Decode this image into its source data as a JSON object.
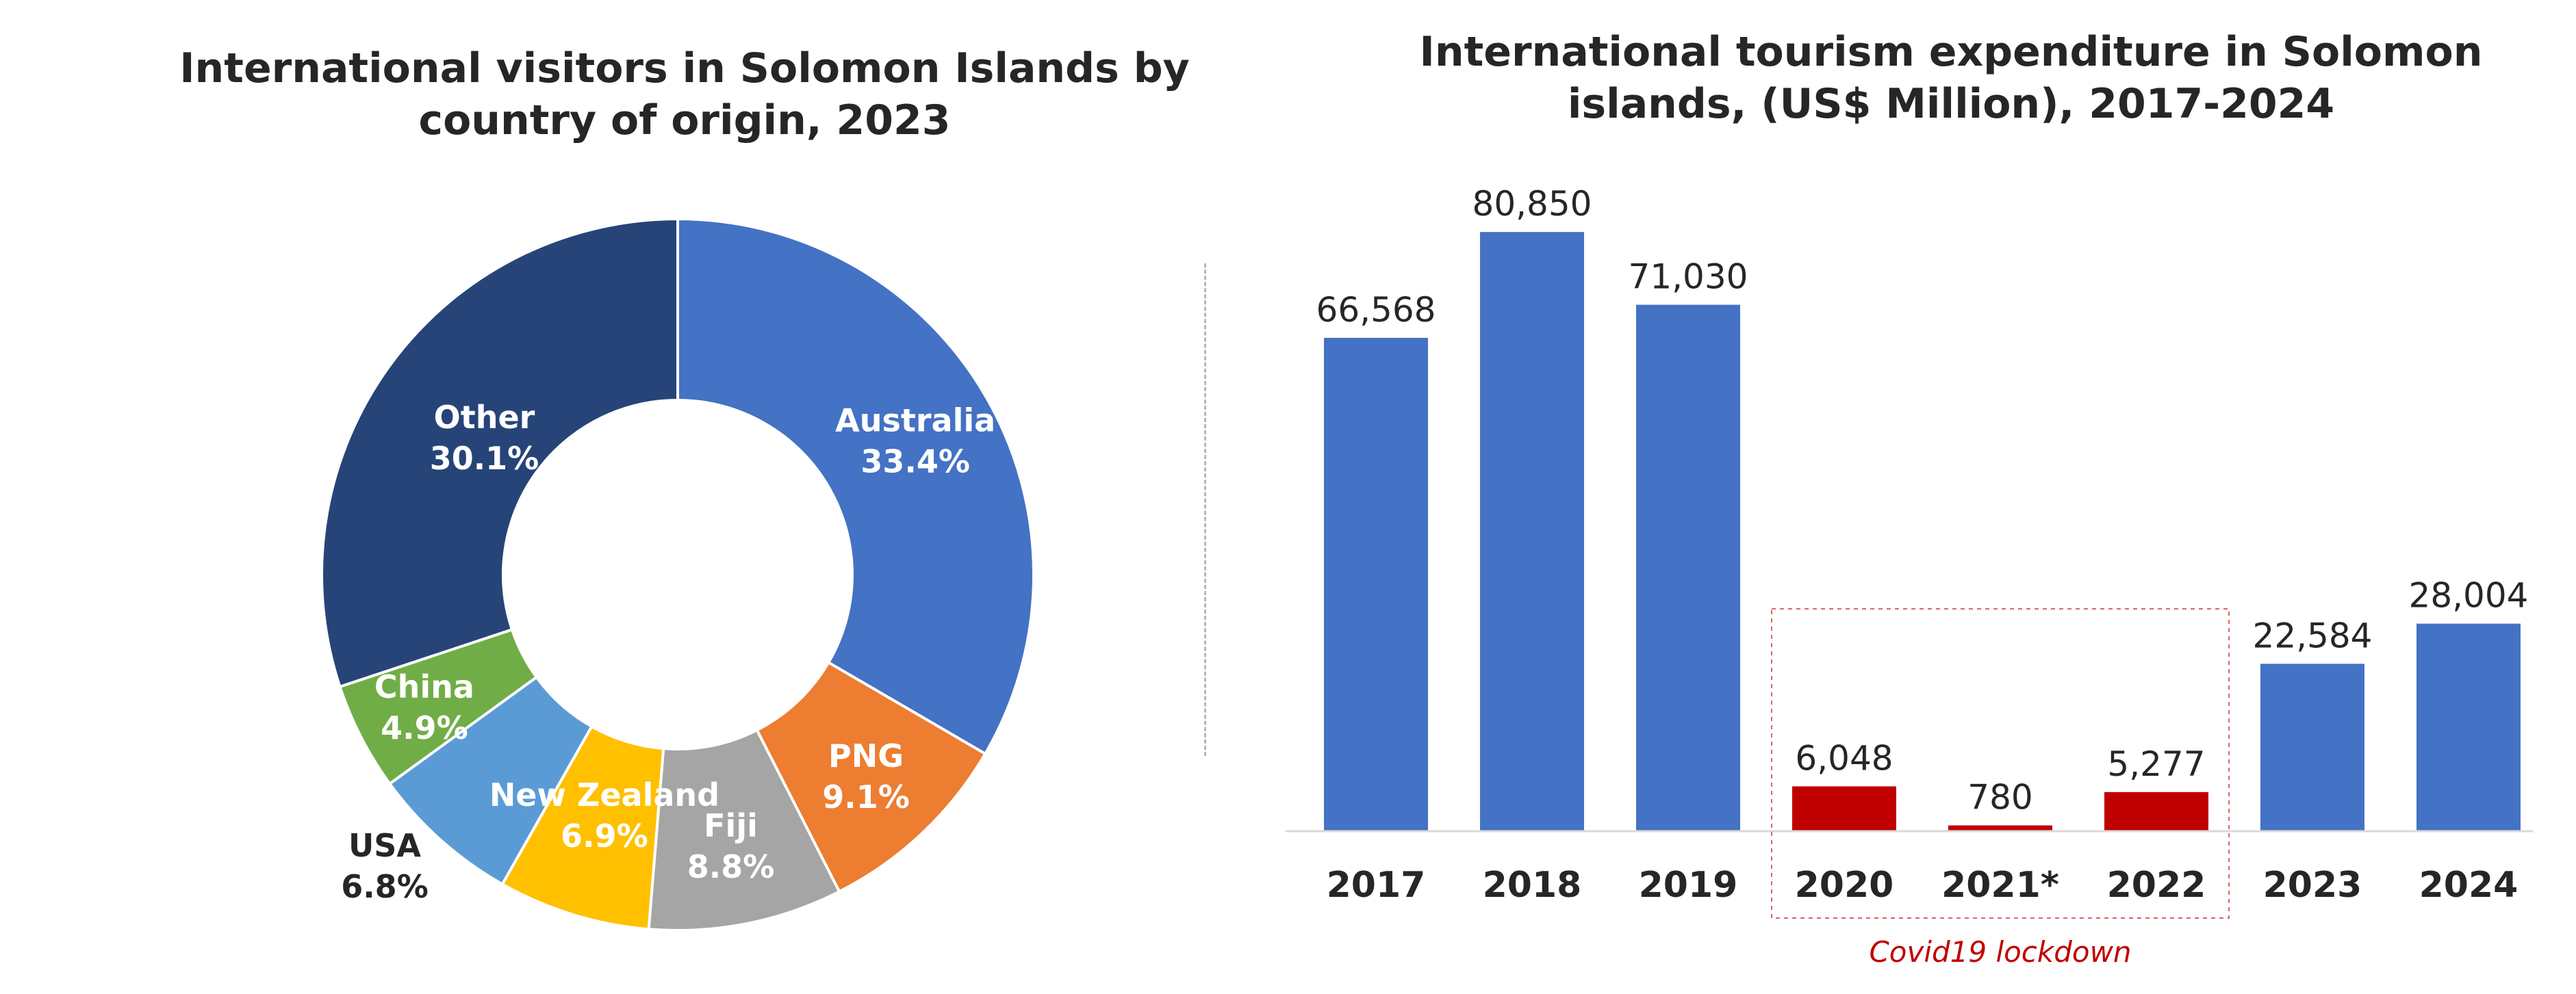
{
  "chart_data": [
    {
      "type": "pie",
      "variant": "donut",
      "title": "International visitors in Solomon Islands by country of origin, 2023",
      "unit": "%",
      "slices": [
        {
          "name": "Australia",
          "value": 33.4,
          "label": "33.4%",
          "color": "#4472c4"
        },
        {
          "name": "PNG",
          "value": 9.1,
          "label": "9.1%",
          "color": "#ed7d31"
        },
        {
          "name": "Fiji",
          "value": 8.8,
          "label": "8.8%",
          "color": "#a5a5a5"
        },
        {
          "name": "New Zealand",
          "value": 6.9,
          "label": "6.9%",
          "color": "#ffc000"
        },
        {
          "name": "USA",
          "value": 6.8,
          "label": "6.8%",
          "color": "#5b9bd5"
        },
        {
          "name": "China",
          "value": 4.9,
          "label": "4.9%",
          "color": "#70ad47"
        },
        {
          "name": "Other",
          "value": 30.1,
          "label": "30.1%",
          "color": "#264478"
        }
      ]
    },
    {
      "type": "bar",
      "title": "International tourism expenditure in Solomon islands, (US$ Million), 2017-2024",
      "categories": [
        "2017",
        "2018",
        "2019",
        "2020",
        "2021*",
        "2022",
        "2023",
        "2024"
      ],
      "values": [
        66568,
        80850,
        71030,
        6048,
        780,
        5277,
        22584,
        28004
      ],
      "value_labels": [
        "66,568",
        "80,850",
        "71,030",
        "6,048",
        "780",
        "5,277",
        "22,584",
        "28,004"
      ],
      "highlight": [
        false,
        false,
        false,
        true,
        true,
        true,
        false,
        false
      ],
      "ylim": [
        0,
        90000
      ],
      "colors": {
        "normal": "#4472c4",
        "highlight": "#c00000"
      },
      "annotation": {
        "text": "Covid19 lockdown",
        "covers": [
          "2020",
          "2021*",
          "2022"
        ],
        "color": "#c00000"
      }
    }
  ]
}
